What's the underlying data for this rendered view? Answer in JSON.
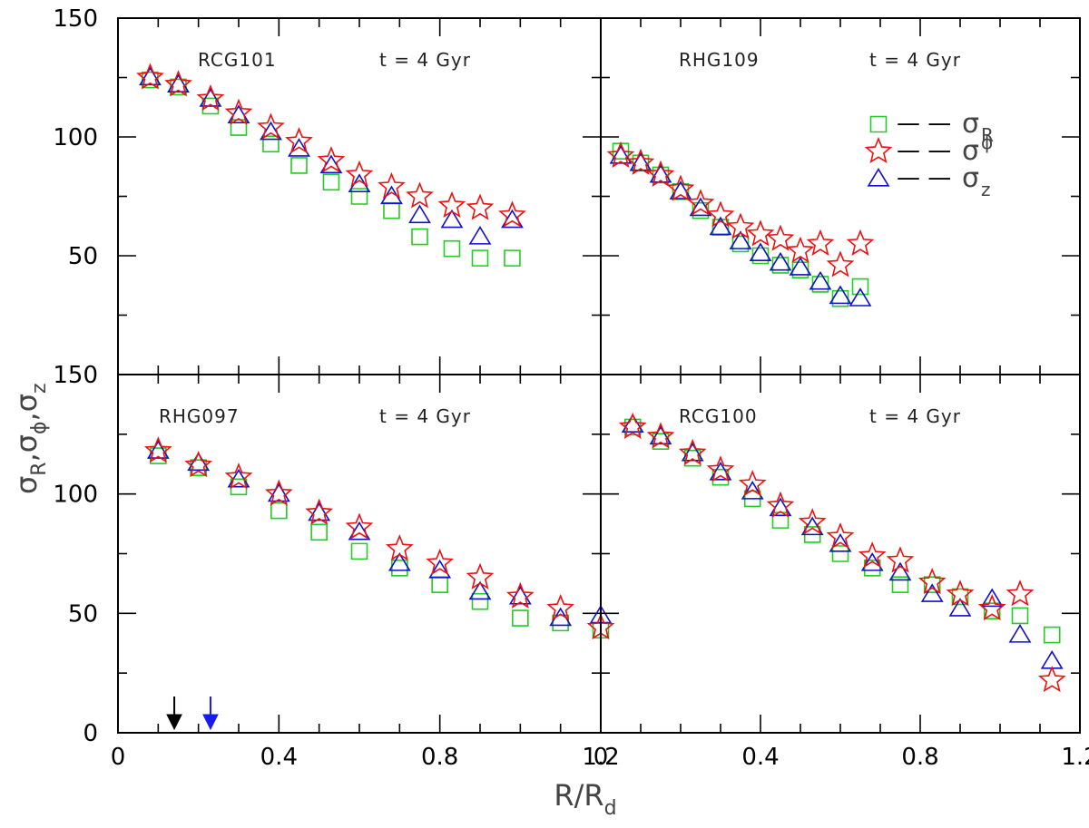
{
  "chart_data": {
    "type": "scatter",
    "title": "",
    "xlabel": "R/R",
    "xlabel_sub": "d",
    "ylabel_parts": [
      {
        "t": "σ"
      },
      {
        "t": "R",
        "sub": true
      },
      {
        "t": ","
      },
      {
        "t": "σ"
      },
      {
        "t": "ϕ",
        "sub": true
      },
      {
        "t": ","
      },
      {
        "t": "σ"
      },
      {
        "t": "z",
        "sub": true
      }
    ],
    "colors": {
      "sigma_R": "#22cc22",
      "sigma_phi": "#ee1111",
      "sigma_z": "#1111cc",
      "arrow_black": "#000000",
      "arrow_blue": "#1a1aee"
    },
    "legend": {
      "placement": "top-right of RHG109 panel",
      "entries": [
        {
          "series": "sigma_R",
          "marker": "square",
          "dash": "— —",
          "symbol": "σ",
          "sub": "R",
          "sup": ""
        },
        {
          "series": "sigma_phi",
          "marker": "star",
          "dash": "— —",
          "symbol": "σ",
          "sub": "",
          "sup": "ϕ"
        },
        {
          "series": "sigma_z",
          "marker": "triangle",
          "dash": "— —",
          "symbol": "σ",
          "sub": "z",
          "sup": ""
        }
      ]
    },
    "panels": [
      {
        "id": "rcg101",
        "label": "RCG101",
        "time": "t = 4 Gyr",
        "xlim": [
          0,
          1.2
        ],
        "ylim": [
          0,
          150
        ],
        "xticks": [],
        "xtick_labels": [],
        "yticks": [
          0,
          50,
          100,
          150
        ],
        "ytick_labels": [
          "",
          "50",
          "100",
          "150"
        ],
        "series": [
          {
            "name": "sigma_R",
            "x": [
              0.08,
              0.15,
              0.23,
              0.3,
              0.38,
              0.45,
              0.53,
              0.6,
              0.68,
              0.75,
              0.83,
              0.9,
              0.98
            ],
            "y": [
              124,
              121,
              113,
              104,
              97,
              88,
              81,
              75,
              69,
              58,
              53,
              49,
              49
            ]
          },
          {
            "name": "sigma_z",
            "x": [
              0.08,
              0.15,
              0.23,
              0.3,
              0.38,
              0.45,
              0.53,
              0.6,
              0.68,
              0.75,
              0.83,
              0.9,
              0.98
            ],
            "y": [
              125,
              122,
              116,
              109,
              102,
              95,
              88,
              80,
              75,
              67,
              65,
              58,
              65
            ]
          },
          {
            "name": "sigma_phi",
            "x": [
              0.08,
              0.15,
              0.23,
              0.3,
              0.38,
              0.45,
              0.53,
              0.6,
              0.68,
              0.75,
              0.83,
              0.9,
              0.98
            ],
            "y": [
              125,
              122,
              116,
              110,
              104,
              98,
              90,
              84,
              79,
              75,
              71,
              70,
              67
            ]
          }
        ]
      },
      {
        "id": "rhg109",
        "label": "RHG109",
        "time": "t = 4 Gyr",
        "xlim": [
          0,
          1.2
        ],
        "ylim": [
          0,
          150
        ],
        "xticks": [],
        "xtick_labels": [],
        "yticks": [],
        "ytick_labels": [],
        "series": [
          {
            "name": "sigma_R",
            "x": [
              0.05,
              0.1,
              0.15,
              0.2,
              0.25,
              0.3,
              0.35,
              0.4,
              0.45,
              0.5,
              0.55,
              0.6,
              0.65
            ],
            "y": [
              94,
              89,
              84,
              77,
              69,
              62,
              55,
              50,
              46,
              44,
              38,
              32,
              37
            ]
          },
          {
            "name": "sigma_z",
            "x": [
              0.05,
              0.1,
              0.15,
              0.2,
              0.25,
              0.3,
              0.35,
              0.4,
              0.45,
              0.5,
              0.55,
              0.6,
              0.65
            ],
            "y": [
              92,
              89,
              84,
              77,
              70,
              62,
              56,
              51,
              47,
              45,
              39,
              33,
              32
            ]
          },
          {
            "name": "sigma_phi",
            "x": [
              0.05,
              0.1,
              0.15,
              0.2,
              0.25,
              0.3,
              0.35,
              0.4,
              0.45,
              0.5,
              0.55,
              0.6,
              0.65
            ],
            "y": [
              92,
              89,
              84,
              78,
              72,
              67,
              62,
              59,
              57,
              52,
              55,
              46,
              55
            ]
          }
        ]
      },
      {
        "id": "rhg097",
        "label": "RHG097",
        "time": "t = 4 Gyr",
        "xlim": [
          0,
          1.2
        ],
        "ylim": [
          0,
          150
        ],
        "xticks": [
          0,
          0.4,
          0.8,
          1.2
        ],
        "xtick_labels": [
          "0",
          "0.4",
          "0.8",
          "1.2"
        ],
        "yticks": [
          0,
          50,
          100,
          150
        ],
        "ytick_labels": [
          "0",
          "50",
          "100",
          "150"
        ],
        "series": [
          {
            "name": "sigma_R",
            "x": [
              0.1,
              0.2,
              0.3,
              0.4,
              0.5,
              0.6,
              0.7,
              0.8,
              0.9,
              1.0,
              1.1,
              1.2
            ],
            "y": [
              116,
              111,
              103,
              93,
              84,
              76,
              69,
              62,
              55,
              48,
              46,
              43
            ]
          },
          {
            "name": "sigma_z",
            "x": [
              0.1,
              0.2,
              0.3,
              0.4,
              0.5,
              0.6,
              0.7,
              0.8,
              0.9,
              1.0,
              1.1,
              1.2
            ],
            "y": [
              118,
              113,
              106,
              100,
              92,
              84,
              71,
              68,
              59,
              57,
              48,
              49
            ]
          },
          {
            "name": "sigma_phi",
            "x": [
              0.1,
              0.2,
              0.3,
              0.4,
              0.5,
              0.6,
              0.7,
              0.8,
              0.9,
              1.0,
              1.1,
              1.2
            ],
            "y": [
              118,
              112,
              107,
              100,
              92,
              86,
              77,
              71,
              65,
              57,
              52,
              44
            ]
          }
        ],
        "arrows": [
          {
            "x": 0.14,
            "color": "arrow_black"
          },
          {
            "x": 0.23,
            "color": "arrow_blue"
          }
        ]
      },
      {
        "id": "rcg100",
        "label": "RCG100",
        "time": "t = 4 Gyr",
        "xlim": [
          0,
          1.2
        ],
        "ylim": [
          0,
          150
        ],
        "xticks": [
          0,
          0.4,
          0.8,
          1.2
        ],
        "xtick_labels": [
          "0",
          "0.4",
          "0.8",
          "1.2"
        ],
        "yticks": [],
        "ytick_labels": [],
        "series": [
          {
            "name": "sigma_R",
            "x": [
              0.08,
              0.15,
              0.23,
              0.3,
              0.38,
              0.45,
              0.53,
              0.6,
              0.68,
              0.75,
              0.83,
              0.9,
              0.98,
              1.05,
              1.13
            ],
            "y": [
              128,
              122,
              115,
              107,
              98,
              89,
              83,
              75,
              69,
              62,
              62,
              57,
              51,
              49,
              41
            ]
          },
          {
            "name": "sigma_z",
            "x": [
              0.08,
              0.15,
              0.23,
              0.3,
              0.38,
              0.45,
              0.53,
              0.6,
              0.68,
              0.75,
              0.83,
              0.9,
              0.98,
              1.05,
              1.13
            ],
            "y": [
              129,
              124,
              117,
              109,
              101,
              94,
              86,
              79,
              71,
              67,
              58,
              52,
              56,
              41,
              30
            ]
          },
          {
            "name": "sigma_phi",
            "x": [
              0.08,
              0.15,
              0.23,
              0.3,
              0.38,
              0.45,
              0.53,
              0.6,
              0.68,
              0.75,
              0.83,
              0.9,
              0.98,
              1.05,
              1.13
            ],
            "y": [
              128,
              124,
              117,
              110,
              104,
              95,
              88,
              82,
              74,
              72,
              63,
              58,
              52,
              58,
              22
            ]
          }
        ]
      }
    ]
  }
}
